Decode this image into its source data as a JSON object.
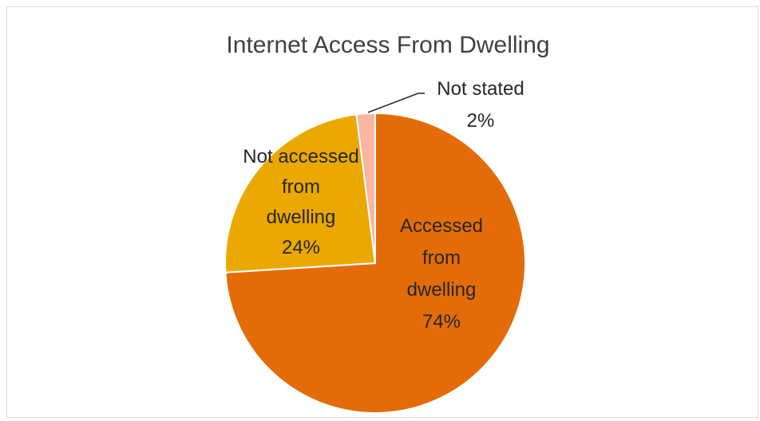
{
  "chart_data": {
    "type": "pie",
    "title": "Internet Access From Dwelling",
    "start_angle_deg": 0,
    "direction": "clockwise",
    "slices": [
      {
        "key": "accessed",
        "label_lines": [
          "Accessed",
          "from",
          "dwelling",
          "74%"
        ],
        "value": 74,
        "color": "#e36c09",
        "label_color": "#262626"
      },
      {
        "key": "not-accessed",
        "label_lines": [
          "Not accessed",
          "from",
          "dwelling",
          "24%"
        ],
        "value": 24,
        "color": "#eaa800",
        "label_color": "#262626"
      },
      {
        "key": "not-stated",
        "label_lines": [
          "Not stated",
          "2%"
        ],
        "value": 2,
        "color": "#f8b6a0",
        "label_color": "#262626"
      }
    ],
    "legend": "none",
    "leader_line_color": "#262626"
  }
}
